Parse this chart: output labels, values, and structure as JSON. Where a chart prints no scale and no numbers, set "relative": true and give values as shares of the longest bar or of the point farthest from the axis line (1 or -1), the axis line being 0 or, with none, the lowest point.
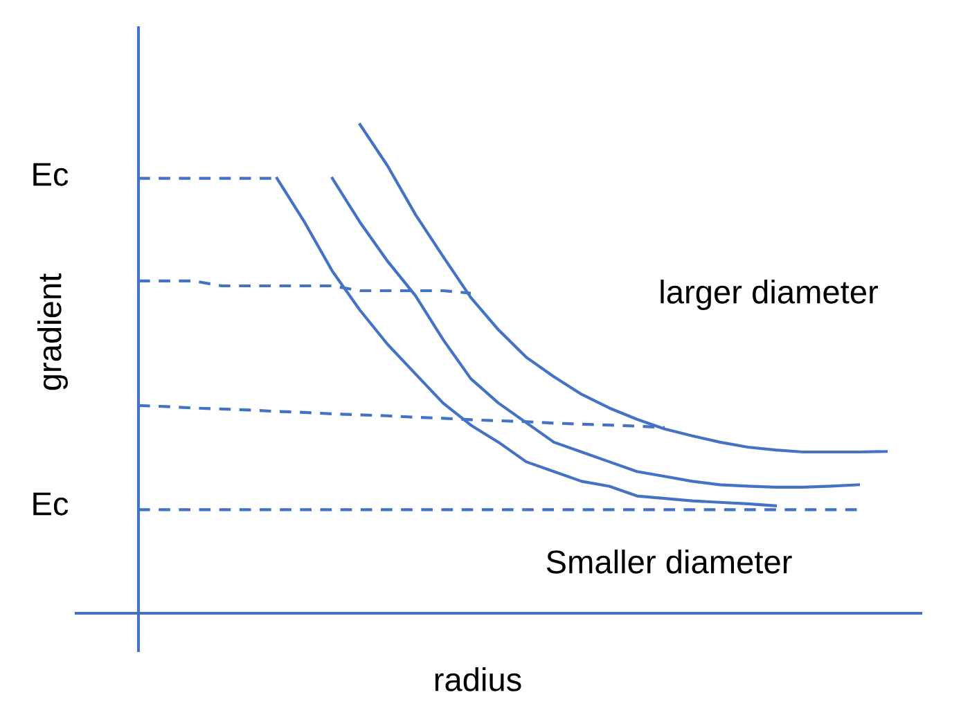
{
  "chart_data": {
    "type": "line",
    "relative": true,
    "xlabel": "radius",
    "ylabel": "gradient",
    "categories": [
      null,
      null,
      null,
      null,
      null,
      null,
      null,
      null,
      null,
      null,
      null,
      null,
      null,
      null,
      null,
      null,
      null,
      null,
      null,
      null,
      null,
      null,
      null,
      null,
      null,
      null,
      null,
      null
    ],
    "series": [
      {
        "color": "#4472c4",
        "line_style": "solid",
        "values": [
          null,
          null,
          null,
          null,
          null,
          0.89,
          0.8,
          0.7,
          0.62,
          0.55,
          0.49,
          0.43,
          0.385,
          0.35,
          0.31,
          0.29,
          0.27,
          0.26,
          0.24,
          0.235,
          0.23,
          0.227,
          0.224,
          0.22,
          null,
          null,
          null,
          null
        ]
      },
      {
        "color": "#4472c4",
        "line_style": "solid",
        "values": [
          null,
          null,
          null,
          null,
          null,
          null,
          null,
          0.89,
          0.8,
          0.72,
          0.65,
          0.56,
          0.48,
          0.43,
          0.39,
          0.35,
          0.33,
          0.31,
          0.29,
          0.28,
          0.27,
          0.263,
          0.26,
          0.258,
          0.258,
          0.26,
          0.263,
          null
        ]
      },
      {
        "color": "#4472c4",
        "line_style": "solid",
        "values": [
          null,
          null,
          null,
          null,
          null,
          null,
          null,
          null,
          1.0,
          0.915,
          0.816,
          0.73,
          0.646,
          0.58,
          0.524,
          0.484,
          0.448,
          0.42,
          0.397,
          0.377,
          0.363,
          0.35,
          0.34,
          0.334,
          0.33,
          0.33,
          0.33,
          0.331
        ]
      },
      {
        "color": "#4472c4",
        "line_style": "dashed",
        "values": [
          0.89,
          0.89,
          0.89,
          0.89,
          0.89,
          0.89,
          null,
          null,
          null,
          null,
          null,
          null,
          null,
          null,
          null,
          null,
          null,
          null,
          null,
          null,
          null,
          null,
          null,
          null,
          null,
          null,
          null,
          null
        ]
      },
      {
        "color": "#4472c4",
        "line_style": "dashed",
        "values": [
          0.68,
          0.68,
          0.68,
          0.67,
          0.67,
          0.67,
          0.67,
          0.67,
          0.66,
          0.66,
          0.66,
          0.66,
          0.655,
          null,
          null,
          null,
          null,
          null,
          null,
          null,
          null,
          null,
          null,
          null,
          null,
          null,
          null,
          null
        ]
      },
      {
        "color": "#4472c4",
        "line_style": "dashed",
        "values": [
          0.425,
          0.423,
          0.42,
          0.418,
          0.416,
          0.413,
          0.411,
          0.408,
          0.406,
          0.404,
          0.401,
          0.399,
          0.396,
          0.394,
          0.392,
          0.389,
          0.387,
          0.385,
          0.383,
          0.38,
          null,
          null,
          null,
          null,
          null,
          null,
          null,
          null
        ]
      },
      {
        "color": "#4472c4",
        "line_style": "dashed",
        "values": [
          0.212,
          0.212,
          0.212,
          0.212,
          0.212,
          0.212,
          0.212,
          0.212,
          0.212,
          0.212,
          0.212,
          0.212,
          0.212,
          0.212,
          0.212,
          0.212,
          0.212,
          0.212,
          0.212,
          0.212,
          0.212,
          0.212,
          0.212,
          0.212,
          0.212,
          0.212,
          0.212,
          null
        ]
      }
    ],
    "annotations": [
      "Ec",
      "Ec",
      "larger diameter",
      "Smaller diameter"
    ]
  }
}
